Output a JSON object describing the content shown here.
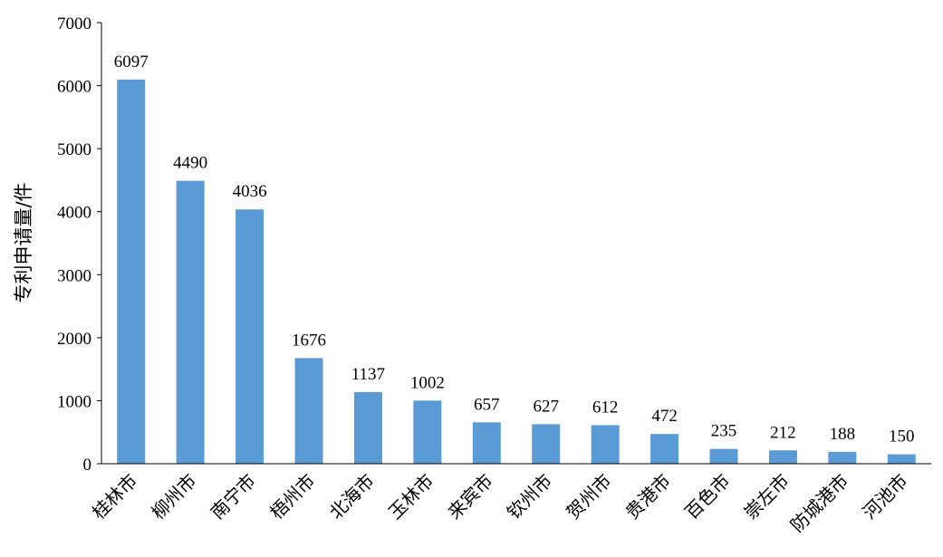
{
  "chart_data": {
    "type": "bar",
    "title": "",
    "xlabel": "",
    "ylabel": "专利申请量/件",
    "ylim": [
      0,
      7000
    ],
    "yticks": [
      0,
      1000,
      2000,
      3000,
      4000,
      5000,
      6000,
      7000
    ],
    "categories": [
      "桂林市",
      "柳州市",
      "南宁市",
      "梧州市",
      "北海市",
      "玉林市",
      "来宾市",
      "钦州市",
      "贺州市",
      "贵港市",
      "百色市",
      "崇左市",
      "防城港市",
      "河池市"
    ],
    "values": [
      6097,
      4490,
      4036,
      1676,
      1137,
      1002,
      657,
      627,
      612,
      472,
      235,
      212,
      188,
      150
    ],
    "bar_color": "#5B9BD5",
    "axis_color": "#000000",
    "grid": false,
    "legend": "none"
  }
}
